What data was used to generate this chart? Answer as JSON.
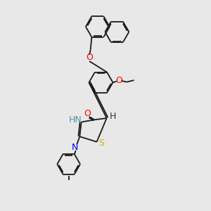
{
  "background_color": "#e8e8e8",
  "fig_size": [
    3.0,
    3.0
  ],
  "dpi": 100,
  "bond_color": "#1a1a1a",
  "bond_lw": 1.3,
  "dbo": 0.06,
  "xlim": [
    -2.5,
    3.5
  ],
  "ylim": [
    -4.5,
    4.5
  ]
}
